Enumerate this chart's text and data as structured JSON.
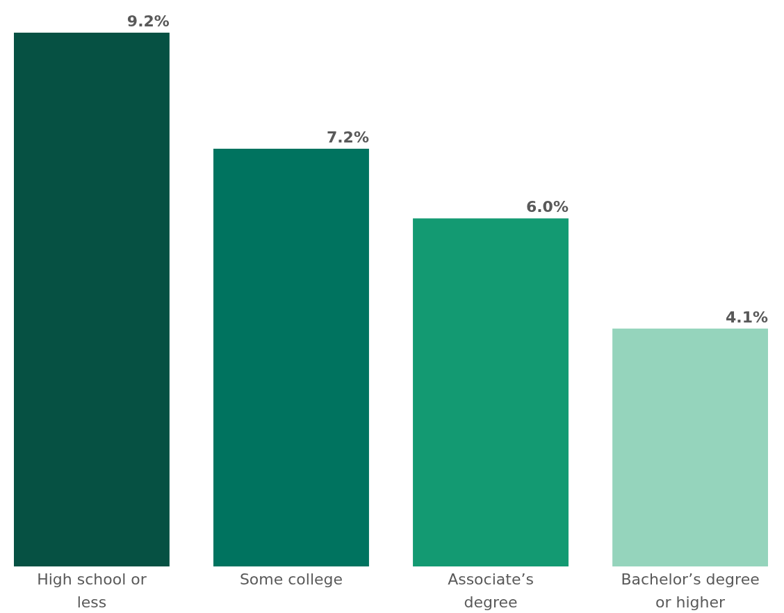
{
  "chart_data": {
    "type": "bar",
    "categories": [
      "High school or less",
      "Some college",
      "Associate’s degree",
      "Bachelor’s degree or higher"
    ],
    "values": [
      9.2,
      7.2,
      6.0,
      4.1
    ],
    "colors": [
      "#065143",
      "#00735f",
      "#139a72",
      "#95d4bc"
    ],
    "value_labels": [
      "9.2%",
      "7.2%",
      "6.0%",
      "4.1%"
    ]
  }
}
